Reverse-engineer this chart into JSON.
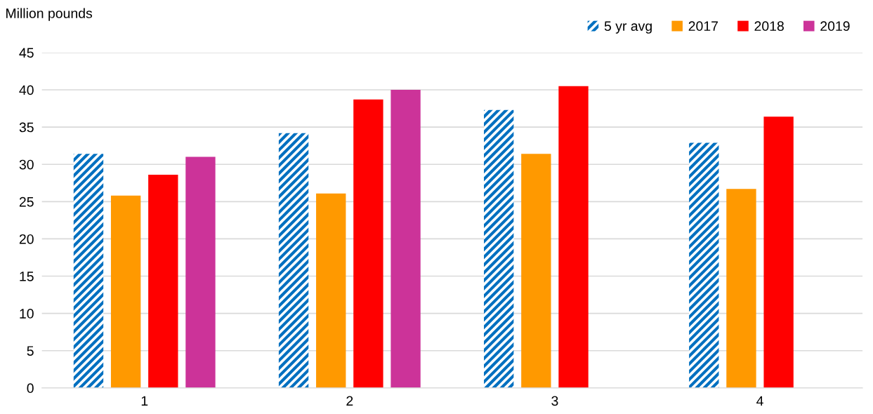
{
  "chart_data": {
    "type": "bar",
    "ylabel": "Million pounds",
    "categories": [
      "1",
      "2",
      "3",
      "4"
    ],
    "series": [
      {
        "name": "5 yr avg",
        "color": "#0070c0",
        "values": [
          31.4,
          34.2,
          37.3,
          32.9
        ]
      },
      {
        "name": "2017",
        "color": "#ff9900",
        "values": [
          25.8,
          26.1,
          31.4,
          26.7
        ]
      },
      {
        "name": "2018",
        "color": "#ff0000",
        "values": [
          28.6,
          38.7,
          40.5,
          36.4
        ]
      },
      {
        "name": "2019",
        "color": "#cc3399",
        "values": [
          31.0,
          40.0,
          null,
          null
        ]
      }
    ],
    "ylim": [
      0,
      45
    ],
    "yticks": [
      0,
      5,
      10,
      15,
      20,
      25,
      30,
      35,
      40,
      45
    ],
    "grid": "y",
    "legend": "top right"
  }
}
